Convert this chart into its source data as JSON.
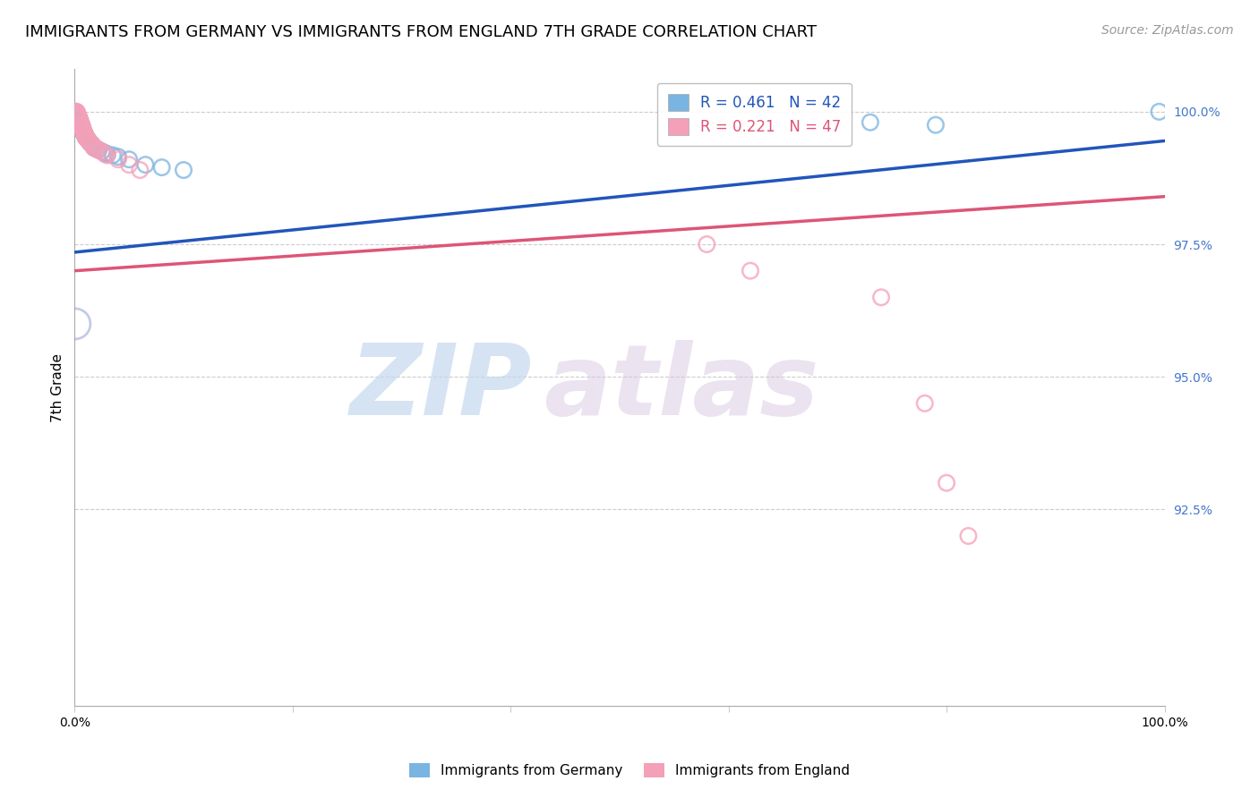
{
  "title": "IMMIGRANTS FROM GERMANY VS IMMIGRANTS FROM ENGLAND 7TH GRADE CORRELATION CHART",
  "source": "Source: ZipAtlas.com",
  "ylabel": "7th Grade",
  "xmin": 0.0,
  "xmax": 1.0,
  "ymin": 0.888,
  "ymax": 1.008,
  "yticks": [
    0.925,
    0.95,
    0.975,
    1.0
  ],
  "ytick_labels": [
    "92.5%",
    "95.0%",
    "97.5%",
    "100.0%"
  ],
  "xticks": [
    0.0,
    0.2,
    0.4,
    0.6,
    0.8,
    1.0
  ],
  "xtick_labels": [
    "0.0%",
    "",
    "",
    "",
    "",
    "100.0%"
  ],
  "germany_R": 0.461,
  "germany_N": 42,
  "england_R": 0.221,
  "england_N": 47,
  "germany_color": "#7ab4e0",
  "england_color": "#f4a0b8",
  "germany_line_color": "#2255bb",
  "england_line_color": "#dd5577",
  "watermark_zip": "ZIP",
  "watermark_atlas": "atlas",
  "germany_x": [
    0.001,
    0.002,
    0.002,
    0.003,
    0.003,
    0.003,
    0.004,
    0.004,
    0.005,
    0.005,
    0.006,
    0.006,
    0.007,
    0.007,
    0.008,
    0.008,
    0.009,
    0.009,
    0.01,
    0.01,
    0.011,
    0.012,
    0.013,
    0.014,
    0.015,
    0.016,
    0.017,
    0.018,
    0.02,
    0.022,
    0.025,
    0.028,
    0.03,
    0.035,
    0.04,
    0.05,
    0.065,
    0.08,
    0.1,
    0.73,
    0.79,
    0.995
  ],
  "germany_y": [
    0.9995,
    0.9995,
    0.999,
    0.999,
    0.9985,
    0.998,
    0.9985,
    0.998,
    0.998,
    0.9975,
    0.9975,
    0.997,
    0.997,
    0.9968,
    0.9965,
    0.996,
    0.996,
    0.9958,
    0.9955,
    0.9952,
    0.995,
    0.9948,
    0.9945,
    0.9942,
    0.994,
    0.9938,
    0.9935,
    0.9932,
    0.993,
    0.9928,
    0.9925,
    0.9922,
    0.992,
    0.9918,
    0.9915,
    0.991,
    0.99,
    0.9895,
    0.989,
    0.998,
    0.9975,
    1.0
  ],
  "england_x": [
    0.001,
    0.001,
    0.002,
    0.002,
    0.002,
    0.003,
    0.003,
    0.003,
    0.004,
    0.004,
    0.004,
    0.005,
    0.005,
    0.005,
    0.006,
    0.006,
    0.007,
    0.007,
    0.007,
    0.008,
    0.008,
    0.009,
    0.009,
    0.01,
    0.01,
    0.011,
    0.012,
    0.013,
    0.014,
    0.015,
    0.016,
    0.017,
    0.018,
    0.02,
    0.022,
    0.025,
    0.028,
    0.03,
    0.04,
    0.05,
    0.06,
    0.58,
    0.62,
    0.74,
    0.78,
    0.8,
    0.82
  ],
  "england_y": [
    1.0,
    1.0,
    1.0,
    0.9998,
    0.9995,
    0.9995,
    0.9992,
    0.999,
    0.999,
    0.9988,
    0.9985,
    0.9985,
    0.9982,
    0.998,
    0.9978,
    0.9975,
    0.9973,
    0.997,
    0.9968,
    0.9965,
    0.9962,
    0.996,
    0.9958,
    0.9955,
    0.9952,
    0.995,
    0.9948,
    0.9945,
    0.9942,
    0.994,
    0.9938,
    0.9935,
    0.9932,
    0.993,
    0.9928,
    0.9925,
    0.992,
    0.9918,
    0.991,
    0.99,
    0.989,
    0.975,
    0.97,
    0.965,
    0.945,
    0.93,
    0.92
  ],
  "title_fontsize": 13,
  "axis_label_fontsize": 11,
  "tick_fontsize": 10,
  "legend_fontsize": 12,
  "source_fontsize": 10
}
